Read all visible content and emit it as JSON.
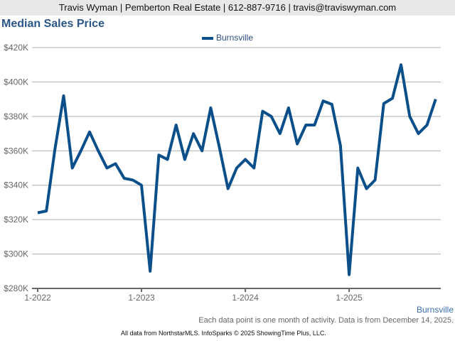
{
  "header": {
    "text": "Travis Wyman | Pemberton Real Estate | 612-887-9716 | travis@traviswyman.com"
  },
  "footer": {
    "source_label": "Burnsville",
    "note": "Each data point is one month of activity. Data is from December 14, 2025.",
    "credit": "All data from NorthstarMLS. InfoSparks © 2025 ShowingTime Plus, LLC."
  },
  "chart_data": {
    "type": "line",
    "title": "Median Sales Price",
    "xlabel": "",
    "ylabel": "",
    "ylim": [
      280000,
      420000
    ],
    "yticks": [
      280000,
      300000,
      320000,
      340000,
      360000,
      380000,
      400000,
      420000
    ],
    "ytick_labels": [
      "$280K",
      "$300K",
      "$320K",
      "$340K",
      "$360K",
      "$380K",
      "$400K",
      "$420K"
    ],
    "xticks": [
      0,
      12,
      24,
      36
    ],
    "xtick_labels": [
      "1-2022",
      "1-2023",
      "1-2024",
      "1-2025"
    ],
    "grid": true,
    "legend_position": "top-center",
    "color": "#0b4f8a",
    "series": [
      {
        "name": "Burnsville",
        "start": "1-2022",
        "values": [
          324000,
          325000,
          361000,
          392000,
          350000,
          360000,
          371000,
          360000,
          350000,
          352500,
          344000,
          343000,
          340000,
          290000,
          357500,
          355000,
          375000,
          355000,
          370000,
          360000,
          385000,
          362000,
          338000,
          350000,
          355000,
          350000,
          383000,
          380000,
          370000,
          385000,
          364000,
          375000,
          375000,
          389000,
          387000,
          363000,
          288000,
          350000,
          338000,
          343000,
          387500,
          390500,
          410000,
          380000,
          370000,
          375000,
          390000
        ]
      }
    ]
  }
}
